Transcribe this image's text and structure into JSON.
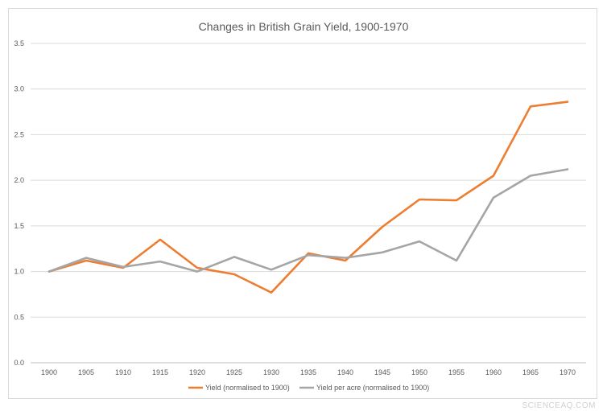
{
  "chart_data": {
    "type": "line",
    "title": "Changes in British Grain Yield, 1900-1970",
    "xlabel": "",
    "ylabel": "",
    "categories": [
      "1900",
      "1905",
      "1910",
      "1915",
      "1920",
      "1925",
      "1930",
      "1935",
      "1940",
      "1945",
      "1950",
      "1955",
      "1960",
      "1965",
      "1970"
    ],
    "ylim": [
      0,
      3.5
    ],
    "yticks": [
      "0.0",
      "0.5",
      "1.0",
      "1.5",
      "2.0",
      "2.5",
      "3.0",
      "3.5"
    ],
    "grid": true,
    "legend": "bottom",
    "series": [
      {
        "name": "Yield (normalised to 1900)",
        "color": "#ed7d31",
        "values": [
          1.0,
          1.12,
          1.04,
          1.35,
          1.04,
          0.97,
          0.77,
          1.2,
          1.12,
          1.49,
          1.79,
          1.78,
          2.05,
          2.81,
          2.86
        ]
      },
      {
        "name": "Yield per acre (normalised to 1900)",
        "color": "#a5a5a5",
        "values": [
          1.0,
          1.15,
          1.05,
          1.11,
          1.0,
          1.16,
          1.02,
          1.18,
          1.15,
          1.21,
          1.33,
          1.12,
          1.81,
          2.05,
          2.12
        ]
      }
    ]
  },
  "watermark": "SCIENCEAQ.COM",
  "colors": {
    "grid": "#d9d9d9",
    "axis": "#bfbfbf",
    "text": "#595959"
  }
}
